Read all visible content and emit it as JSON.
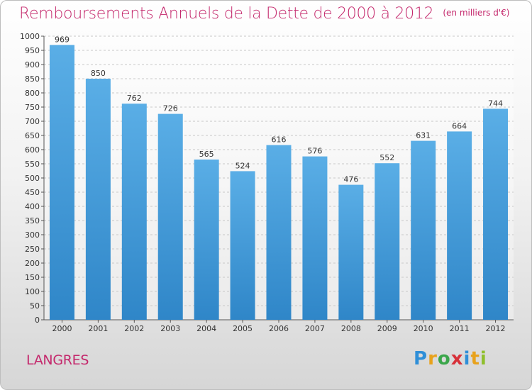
{
  "title": "Remboursements Annuels de la Dette de 2000 à 2012",
  "subtitle": "(en milliers d'€)",
  "city": "LANGRES",
  "logo": {
    "letters": [
      "P",
      "r",
      "o",
      "x",
      "i",
      "t",
      "i"
    ],
    "colors": [
      "#2f8fd8",
      "#e8a21c",
      "#3aa64a",
      "#d7313a",
      "#2f8fd8",
      "#e8a21c",
      "#8fbf2c"
    ]
  },
  "colors": {
    "bar": "#5aaee6",
    "bar_dark": "#2f86c8",
    "title": "#c4286c"
  },
  "chart_data": {
    "type": "bar",
    "title": "Remboursements Annuels de la Dette de 2000 à 2012",
    "subtitle": "(en milliers d'€)",
    "categories": [
      "2000",
      "2001",
      "2002",
      "2003",
      "2004",
      "2005",
      "2006",
      "2007",
      "2008",
      "2009",
      "2010",
      "2011",
      "2012"
    ],
    "values": [
      969,
      850,
      762,
      726,
      565,
      524,
      616,
      576,
      476,
      552,
      631,
      664,
      744
    ],
    "ylim": [
      0,
      1000
    ],
    "yticks": [
      0,
      50,
      100,
      150,
      200,
      250,
      300,
      350,
      400,
      450,
      500,
      550,
      600,
      650,
      700,
      750,
      800,
      850,
      900,
      950,
      1000
    ],
    "grid": true,
    "data_labels": true
  }
}
